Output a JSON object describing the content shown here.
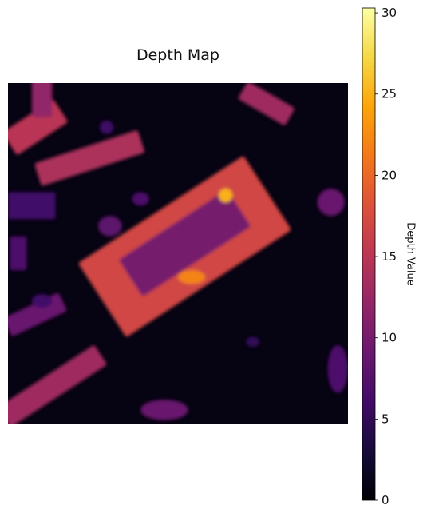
{
  "chart_data": {
    "type": "heatmap",
    "title": "Depth Map",
    "colorbar": {
      "label": "Depth Value",
      "colormap": "inferno",
      "range": [
        0,
        30.3
      ],
      "ticks": [
        0,
        5,
        10,
        15,
        20,
        25,
        30
      ]
    },
    "axes_visible": false,
    "grid": false,
    "background_value": 0.8,
    "regions": [
      {
        "id": "central-building-frame",
        "shape": "rotated-rect",
        "cx": 0.52,
        "cy": 0.48,
        "w": 0.58,
        "h": 0.26,
        "angle_deg": -33,
        "value": 17
      },
      {
        "id": "central-building-inner",
        "shape": "rotated-rect",
        "cx": 0.52,
        "cy": 0.47,
        "w": 0.38,
        "h": 0.13,
        "angle_deg": -33,
        "value": 10
      },
      {
        "id": "central-hotspot",
        "shape": "ellipse",
        "cx": 0.64,
        "cy": 0.33,
        "rx": 0.02,
        "ry": 0.02,
        "value": 25
      },
      {
        "id": "lower-hotspot",
        "shape": "ellipse",
        "cx": 0.54,
        "cy": 0.57,
        "rx": 0.04,
        "ry": 0.02,
        "value": 22
      },
      {
        "id": "top-left-building-a",
        "shape": "rotated-rect",
        "cx": 0.08,
        "cy": 0.13,
        "w": 0.18,
        "h": 0.08,
        "angle_deg": -33,
        "value": 15
      },
      {
        "id": "top-left-building-b",
        "shape": "rotated-rect",
        "cx": 0.24,
        "cy": 0.22,
        "w": 0.32,
        "h": 0.07,
        "angle_deg": -18,
        "value": 14
      },
      {
        "id": "top-right-building",
        "shape": "rotated-rect",
        "cx": 0.76,
        "cy": 0.06,
        "w": 0.16,
        "h": 0.06,
        "angle_deg": 30,
        "value": 13
      },
      {
        "id": "top-mid-strip",
        "shape": "rotated-rect",
        "cx": 0.1,
        "cy": 0.04,
        "w": 0.06,
        "h": 0.12,
        "angle_deg": 0,
        "value": 12
      },
      {
        "id": "bottom-left-building",
        "shape": "rotated-rect",
        "cx": 0.13,
        "cy": 0.89,
        "w": 0.34,
        "h": 0.07,
        "angle_deg": -33,
        "value": 13
      },
      {
        "id": "left-small-a",
        "shape": "rotated-rect",
        "cx": 0.08,
        "cy": 0.68,
        "w": 0.18,
        "h": 0.06,
        "angle_deg": -25,
        "value": 9
      },
      {
        "id": "left-small-b",
        "shape": "rotated-rect",
        "cx": 0.03,
        "cy": 0.5,
        "w": 0.05,
        "h": 0.1,
        "angle_deg": 0,
        "value": 7
      },
      {
        "id": "left-small-c",
        "shape": "rotated-rect",
        "cx": 0.07,
        "cy": 0.36,
        "w": 0.14,
        "h": 0.08,
        "angle_deg": 0,
        "value": 6
      },
      {
        "id": "right-blob",
        "shape": "ellipse",
        "cx": 0.95,
        "cy": 0.35,
        "rx": 0.04,
        "ry": 0.04,
        "value": 9
      },
      {
        "id": "right-bottom-blob",
        "shape": "ellipse",
        "cx": 0.97,
        "cy": 0.84,
        "rx": 0.03,
        "ry": 0.07,
        "value": 7
      },
      {
        "id": "bottom-mid-blob",
        "shape": "ellipse",
        "cx": 0.46,
        "cy": 0.96,
        "rx": 0.07,
        "ry": 0.03,
        "value": 9
      },
      {
        "id": "mid-left-blob-a",
        "shape": "ellipse",
        "cx": 0.3,
        "cy": 0.42,
        "rx": 0.035,
        "ry": 0.03,
        "value": 8
      },
      {
        "id": "mid-left-blob-b",
        "shape": "ellipse",
        "cx": 0.39,
        "cy": 0.34,
        "rx": 0.025,
        "ry": 0.02,
        "value": 7
      },
      {
        "id": "mid-left-blob-c",
        "shape": "ellipse",
        "cx": 0.1,
        "cy": 0.64,
        "rx": 0.03,
        "ry": 0.02,
        "value": 6
      },
      {
        "id": "upper-mid-blob",
        "shape": "ellipse",
        "cx": 0.29,
        "cy": 0.13,
        "rx": 0.02,
        "ry": 0.02,
        "value": 6
      },
      {
        "id": "right-mid-blob",
        "shape": "ellipse",
        "cx": 0.72,
        "cy": 0.76,
        "rx": 0.02,
        "ry": 0.015,
        "value": 5
      }
    ]
  }
}
